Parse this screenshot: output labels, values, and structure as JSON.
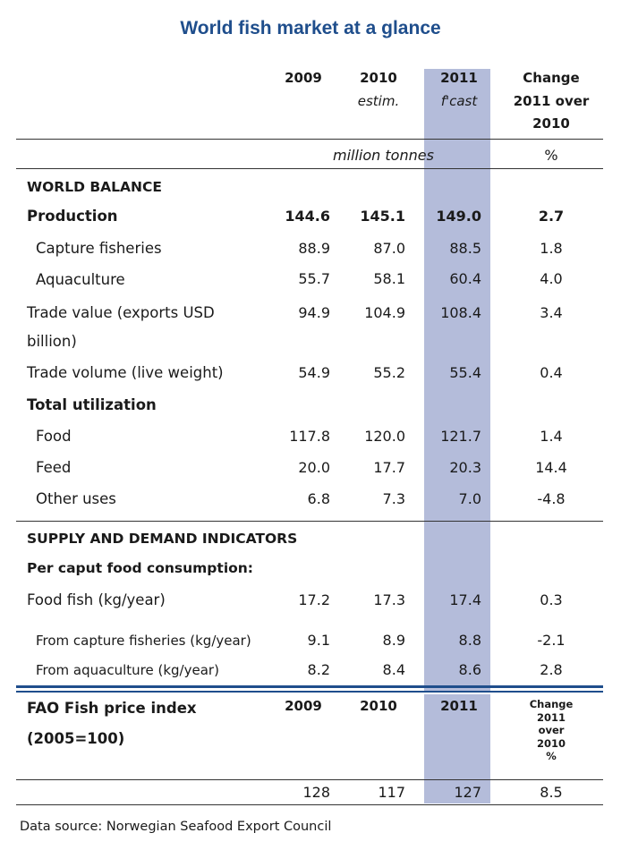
{
  "title": "World fish market at a glance",
  "header": {
    "col1": "2009",
    "col2": "2010",
    "col2_sub": "estim.",
    "col3": "2011",
    "col3_sub": "f'cast",
    "change_line1": "Change",
    "change_line2": "2011 over",
    "change_line3": "2010",
    "units": "million tonnes",
    "units_pct": "%"
  },
  "world_balance": {
    "heading": "WORLD BALANCE",
    "rows": [
      {
        "label": "Production",
        "v2009": "144.6",
        "v2010": "145.1",
        "v2011": "149.0",
        "change": "2.7"
      },
      {
        "label": "Capture fisheries",
        "v2009": "88.9",
        "v2010": "87.0",
        "v2011": "88.5",
        "change": "1.8"
      },
      {
        "label": "Aquaculture",
        "v2009": "55.7",
        "v2010": "58.1",
        "v2011": "60.4",
        "change": "4.0"
      },
      {
        "label": "Trade value (exports USD",
        "label2": "billion)",
        "v2009": "94.9",
        "v2010": "104.9",
        "v2011": "108.4",
        "change": "3.4"
      },
      {
        "label": "Trade volume (live weight)",
        "v2009": "54.9",
        "v2010": "55.2",
        "v2011": "55.4",
        "change": "0.4"
      },
      {
        "label": "Total utilization"
      },
      {
        "label": "Food",
        "v2009": "117.8",
        "v2010": "120.0",
        "v2011": "121.7",
        "change": "1.4"
      },
      {
        "label": "Feed",
        "v2009": "20.0",
        "v2010": "17.7",
        "v2011": "20.3",
        "change": "14.4"
      },
      {
        "label": "Other uses",
        "v2009": "6.8",
        "v2010": "7.3",
        "v2011": "7.0",
        "change": "-4.8"
      }
    ]
  },
  "supply_demand": {
    "heading": "SUPPLY AND DEMAND INDICATORS",
    "subheading": "Per caput food consumption:",
    "rows": [
      {
        "label": "Food fish (kg/year)",
        "v2009": "17.2",
        "v2010": "17.3",
        "v2011": "17.4",
        "change": "0.3"
      },
      {
        "label": "From capture fisheries (kg/year)",
        "v2009": "9.1",
        "v2010": "8.9",
        "v2011": "8.8",
        "change": "-2.1"
      },
      {
        "label": "From aquaculture (kg/year)",
        "v2009": "8.2",
        "v2010": "8.4",
        "v2011": "8.6",
        "change": "2.8"
      }
    ]
  },
  "price_index": {
    "label_line1": "FAO Fish price index",
    "label_line2": "(2005=100)",
    "col1": "2009",
    "col2": "2010",
    "col3": "2011",
    "change_lines": [
      "Change",
      "2011",
      "over",
      "2010",
      "%"
    ],
    "v2009": "128",
    "v2010": "117",
    "v2011": "127",
    "change": "8.5"
  },
  "footer": "Data source: Norwegian Seafood Export Council"
}
